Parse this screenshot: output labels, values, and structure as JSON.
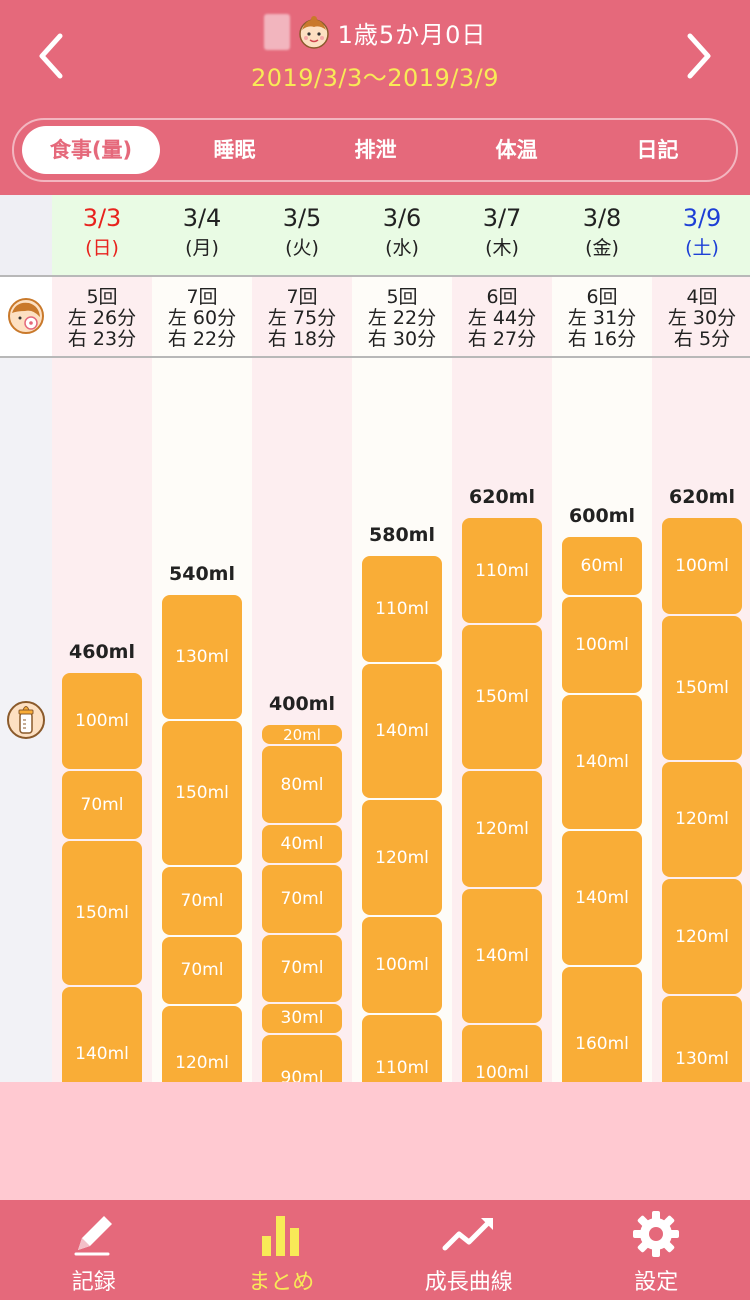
{
  "header": {
    "age": "1歳5か月0日",
    "date_range": "2019/3/3〜2019/3/9"
  },
  "tabs": [
    {
      "label": "食事(量)",
      "active": true
    },
    {
      "label": "睡眠",
      "active": false
    },
    {
      "label": "排泄",
      "active": false
    },
    {
      "label": "体温",
      "active": false
    },
    {
      "label": "日記",
      "active": false
    }
  ],
  "colors": {
    "header": "#e5697b",
    "bar": "#f9ad37",
    "sunday": "#e8231e",
    "saturday": "#1d3fd6",
    "accent_yellow": "#f8ea57"
  },
  "days": [
    {
      "date": "3/3",
      "weekday": "(日)",
      "nursing": {
        "count": "5回",
        "left": "左 26分",
        "right": "右 23分"
      },
      "total": "460ml",
      "segments": [
        "100ml",
        "70ml",
        "150ml",
        "140ml"
      ]
    },
    {
      "date": "3/4",
      "weekday": "(月)",
      "nursing": {
        "count": "7回",
        "left": "左 60分",
        "right": "右 22分"
      },
      "total": "540ml",
      "segments": [
        "130ml",
        "150ml",
        "70ml",
        "70ml",
        "120ml"
      ]
    },
    {
      "date": "3/5",
      "weekday": "(火)",
      "nursing": {
        "count": "7回",
        "left": "左 75分",
        "right": "右 18分"
      },
      "total": "400ml",
      "segments": [
        "20ml",
        "80ml",
        "40ml",
        "70ml",
        "70ml",
        "30ml",
        "90ml"
      ]
    },
    {
      "date": "3/6",
      "weekday": "(水)",
      "nursing": {
        "count": "5回",
        "left": "左 22分",
        "right": "右 30分"
      },
      "total": "580ml",
      "segments": [
        "110ml",
        "140ml",
        "120ml",
        "100ml",
        "110ml"
      ]
    },
    {
      "date": "3/7",
      "weekday": "(木)",
      "nursing": {
        "count": "6回",
        "left": "左 44分",
        "right": "右 27分"
      },
      "total": "620ml",
      "segments": [
        "110ml",
        "150ml",
        "120ml",
        "140ml",
        "100ml"
      ]
    },
    {
      "date": "3/8",
      "weekday": "(金)",
      "nursing": {
        "count": "6回",
        "left": "左 31分",
        "right": "右 16分"
      },
      "total": "600ml",
      "segments": [
        "60ml",
        "100ml",
        "140ml",
        "140ml",
        "160ml"
      ]
    },
    {
      "date": "3/9",
      "weekday": "(土)",
      "nursing": {
        "count": "4回",
        "left": "左 30分",
        "right": "右 5分"
      },
      "total": "620ml",
      "segments": [
        "100ml",
        "150ml",
        "120ml",
        "120ml",
        "130ml"
      ]
    }
  ],
  "bottom_nav": [
    {
      "label": "記録",
      "icon": "pencil-icon",
      "active": false
    },
    {
      "label": "まとめ",
      "icon": "bar-chart-icon",
      "active": true
    },
    {
      "label": "成長曲線",
      "icon": "trend-line-icon",
      "active": false
    },
    {
      "label": "設定",
      "icon": "gear-icon",
      "active": false
    }
  ]
}
